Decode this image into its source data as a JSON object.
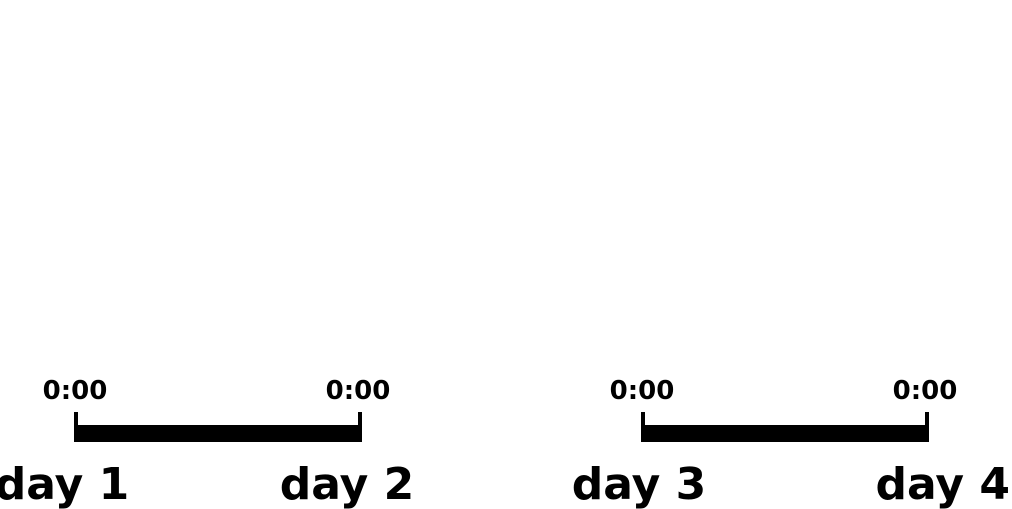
{
  "timelines": [
    {
      "start_time": "0:00",
      "end_time": "0:00",
      "start_day": "day 1",
      "end_day": "day 2"
    },
    {
      "start_time": "0:00",
      "end_time": "0:00",
      "start_day": "day 3",
      "end_day": "day 4"
    }
  ],
  "colors": {
    "ink": "#000000",
    "background": "#ffffff"
  }
}
